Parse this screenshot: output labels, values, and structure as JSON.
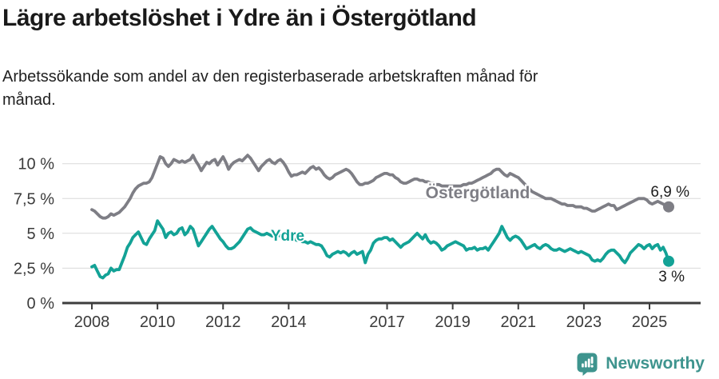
{
  "header": {
    "title": "Lägre arbetslöshet i Ydre än i Östergötland",
    "subtitle_lines": [
      "Arbetssökande som andel av den registerbaserade arbetskraften månad för",
      "månad."
    ]
  },
  "footer": {
    "brand": "Newsworthy",
    "logo_icon": "bar-chart-speech-bubble",
    "logo_color": "#3E948E"
  },
  "chart_data": {
    "type": "line",
    "title": "Lägre arbetslöshet i Ydre än i Östergötland",
    "subtitle": "Arbetssökande som andel av den registerbaserade arbetskraften månad för månad.",
    "unit": "%",
    "frequency": "monthly",
    "x_start": "2008-01",
    "x_end": "2025-08",
    "x_tick_years": [
      2008,
      2010,
      2012,
      2014,
      2017,
      2019,
      2021,
      2023,
      2025
    ],
    "y_ticks": [
      {
        "value": 0,
        "label": "0 %"
      },
      {
        "value": 2.5,
        "label": "2,5 %"
      },
      {
        "value": 5,
        "label": "5 %"
      },
      {
        "value": 7.5,
        "label": "7,5 %"
      },
      {
        "value": 10,
        "label": "10 %"
      }
    ],
    "ylim": [
      0,
      11.5
    ],
    "grid": "horizontal",
    "grid_color": "#d9d9d9",
    "axis_color": "#3d3d3d",
    "axis_text_color": "#3b3b3b",
    "end_label_color": "#1d1d1d",
    "series": [
      {
        "name": "Östergötland",
        "color": "#7E7E85",
        "end_label": "6,9 %",
        "last_value": 6.9,
        "values": [
          6.7,
          6.6,
          6.4,
          6.2,
          6.1,
          6.1,
          6.2,
          6.4,
          6.3,
          6.4,
          6.5,
          6.7,
          6.9,
          7.2,
          7.5,
          7.9,
          8.2,
          8.4,
          8.5,
          8.6,
          8.6,
          8.7,
          9.0,
          9.5,
          10.0,
          10.5,
          10.4,
          10.0,
          9.8,
          10.0,
          10.3,
          10.2,
          10.1,
          10.2,
          10.1,
          10.2,
          10.3,
          10.6,
          10.2,
          9.9,
          9.5,
          9.8,
          10.1,
          10.0,
          10.2,
          10.3,
          9.9,
          10.2,
          10.5,
          10.1,
          9.6,
          9.9,
          10.1,
          10.2,
          10.3,
          10.2,
          10.4,
          10.6,
          10.4,
          10.1,
          9.8,
          9.5,
          9.8,
          10.0,
          10.2,
          10.3,
          10.1,
          10.0,
          10.2,
          10.3,
          10.1,
          9.8,
          9.4,
          9.1,
          9.2,
          9.2,
          9.3,
          9.4,
          9.3,
          9.5,
          9.7,
          9.8,
          9.6,
          9.7,
          9.5,
          9.2,
          9.0,
          8.9,
          9.0,
          9.2,
          9.3,
          9.4,
          9.5,
          9.6,
          9.5,
          9.3,
          9.0,
          8.7,
          8.5,
          8.5,
          8.6,
          8.6,
          8.7,
          8.8,
          9.0,
          9.1,
          9.2,
          9.3,
          9.3,
          9.2,
          9.2,
          9.0,
          8.9,
          8.7,
          8.6,
          8.6,
          8.7,
          8.8,
          8.9,
          8.9,
          8.8,
          8.8,
          8.7,
          8.7,
          8.6,
          8.6,
          8.5,
          8.5,
          8.4,
          8.4,
          8.4,
          8.4,
          8.4,
          8.4,
          8.4,
          8.4,
          8.5,
          8.5,
          8.6,
          8.6,
          8.7,
          8.8,
          8.9,
          9.0,
          9.1,
          9.2,
          9.3,
          9.5,
          9.6,
          9.6,
          9.4,
          9.2,
          9.1,
          9.3,
          9.2,
          9.1,
          9.0,
          8.8,
          8.6,
          8.4,
          8.2,
          8.0,
          7.9,
          7.8,
          7.7,
          7.6,
          7.5,
          7.5,
          7.5,
          7.4,
          7.3,
          7.2,
          7.1,
          7.1,
          7.0,
          7.0,
          7.0,
          6.9,
          6.9,
          6.9,
          6.8,
          6.8,
          6.7,
          6.6,
          6.6,
          6.7,
          6.8,
          6.9,
          7.0,
          7.1,
          7.0,
          7.0,
          6.7,
          6.8,
          6.9,
          7.0,
          7.1,
          7.2,
          7.3,
          7.4,
          7.5,
          7.5,
          7.5,
          7.4,
          7.2,
          7.1,
          7.2,
          7.3,
          7.2,
          7.1,
          7.0,
          6.9
        ]
      },
      {
        "name": "Ydre",
        "color": "#13A296",
        "end_label": "3 %",
        "last_value": 3.0,
        "values": [
          2.6,
          2.7,
          2.3,
          1.9,
          1.8,
          2.0,
          2.1,
          2.5,
          2.3,
          2.4,
          2.4,
          2.9,
          3.4,
          4.0,
          4.3,
          4.7,
          4.9,
          5.1,
          4.7,
          4.3,
          4.2,
          4.6,
          4.9,
          5.2,
          5.9,
          5.6,
          5.3,
          4.7,
          5.0,
          5.1,
          4.9,
          5.0,
          5.3,
          5.4,
          4.9,
          5.1,
          5.5,
          5.3,
          4.7,
          4.1,
          4.4,
          4.7,
          5.0,
          5.3,
          5.5,
          5.2,
          4.9,
          4.6,
          4.4,
          4.1,
          3.9,
          3.9,
          4.0,
          4.2,
          4.4,
          4.7,
          5.0,
          5.3,
          5.4,
          5.2,
          5.1,
          5.0,
          4.9,
          4.9,
          5.0,
          4.9,
          4.8,
          4.9,
          4.9,
          4.8,
          4.9,
          4.9,
          4.9,
          4.8,
          4.6,
          4.5,
          4.6,
          4.4,
          4.4,
          4.3,
          4.4,
          4.3,
          4.2,
          4.2,
          4.1,
          3.8,
          3.4,
          3.3,
          3.5,
          3.6,
          3.7,
          3.6,
          3.7,
          3.6,
          3.4,
          3.6,
          3.7,
          3.5,
          3.6,
          3.7,
          2.9,
          3.5,
          3.8,
          4.3,
          4.5,
          4.6,
          4.6,
          4.7,
          4.7,
          4.5,
          4.6,
          4.4,
          4.2,
          4.0,
          4.2,
          4.3,
          4.4,
          4.6,
          4.8,
          5.0,
          4.8,
          4.6,
          4.9,
          4.5,
          4.3,
          4.4,
          4.3,
          4.1,
          3.8,
          3.9,
          4.1,
          4.2,
          4.3,
          4.4,
          4.3,
          4.2,
          4.1,
          3.8,
          3.9,
          3.9,
          4.0,
          3.8,
          3.9,
          3.9,
          4.0,
          3.8,
          4.1,
          4.4,
          4.7,
          5.0,
          5.5,
          5.1,
          4.7,
          4.5,
          4.7,
          4.8,
          4.7,
          4.5,
          4.2,
          3.9,
          4.0,
          4.1,
          4.2,
          4.0,
          3.9,
          4.1,
          4.2,
          4.1,
          3.9,
          3.8,
          3.8,
          3.9,
          3.8,
          3.7,
          3.8,
          3.9,
          3.8,
          3.7,
          3.6,
          3.7,
          3.6,
          3.5,
          3.4,
          3.1,
          3.0,
          3.1,
          3.0,
          3.2,
          3.5,
          3.7,
          3.8,
          3.8,
          3.6,
          3.4,
          3.1,
          2.9,
          3.2,
          3.6,
          3.8,
          4.0,
          4.2,
          4.1,
          3.9,
          4.1,
          4.2,
          3.9,
          4.1,
          4.2,
          3.8,
          4.0,
          3.6,
          3.0
        ]
      }
    ]
  }
}
